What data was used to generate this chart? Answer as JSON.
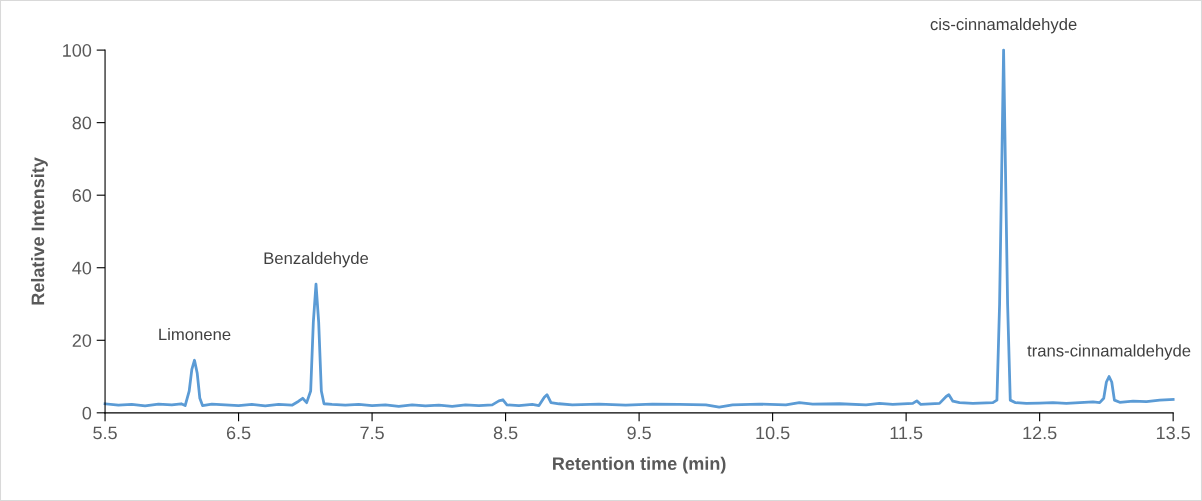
{
  "chart_data": {
    "type": "line",
    "xlabel": "Retention time (min)",
    "ylabel": "Relative Intensity",
    "xlim": [
      5.5,
      13.5
    ],
    "xticks": [
      5.5,
      6.5,
      7.5,
      8.5,
      9.5,
      10.5,
      11.5,
      12.5,
      13.5
    ],
    "ylim": [
      0,
      100
    ],
    "yticks": [
      0,
      20,
      40,
      60,
      80,
      100
    ],
    "grid": false,
    "legend": false,
    "marker": "none",
    "line_style": "solid",
    "annotations": [
      {
        "text": "Limonene",
        "x": 6.17,
        "y": 14.5
      },
      {
        "text": "Benzaldehyde",
        "x": 7.08,
        "y": 35.5
      },
      {
        "text": "cis-cinnamaldehyde",
        "x": 12.23,
        "y": 100
      },
      {
        "text": "trans-cinnamaldehyde",
        "x": 13.02,
        "y": 10
      }
    ],
    "series": [
      {
        "color": "#5b9bd5",
        "x": [
          5.5,
          5.6,
          5.7,
          5.8,
          5.9,
          6.0,
          6.07,
          6.1,
          6.13,
          6.15,
          6.17,
          6.19,
          6.21,
          6.23,
          6.3,
          6.4,
          6.5,
          6.6,
          6.7,
          6.8,
          6.9,
          6.95,
          6.98,
          7.01,
          7.04,
          7.06,
          7.08,
          7.1,
          7.12,
          7.14,
          7.2,
          7.3,
          7.4,
          7.5,
          7.6,
          7.7,
          7.8,
          7.9,
          8.0,
          8.1,
          8.2,
          8.3,
          8.4,
          8.45,
          8.48,
          8.51,
          8.6,
          8.7,
          8.75,
          8.79,
          8.81,
          8.84,
          8.9,
          9.0,
          9.2,
          9.4,
          9.6,
          9.8,
          10.0,
          10.1,
          10.2,
          10.4,
          10.6,
          10.7,
          10.8,
          11.0,
          11.2,
          11.3,
          11.4,
          11.55,
          11.58,
          11.61,
          11.75,
          11.8,
          11.82,
          11.85,
          11.9,
          12.0,
          12.15,
          12.18,
          12.2,
          12.23,
          12.26,
          12.28,
          12.32,
          12.4,
          12.5,
          12.6,
          12.7,
          12.8,
          12.9,
          12.95,
          12.98,
          13.0,
          13.02,
          13.04,
          13.06,
          13.1,
          13.2,
          13.3,
          13.4,
          13.5
        ],
        "values": [
          2.5,
          2.1,
          2.3,
          1.9,
          2.4,
          2.2,
          2.5,
          2.0,
          6,
          12,
          14.5,
          11,
          4,
          2.0,
          2.4,
          2.2,
          2.0,
          2.3,
          1.9,
          2.3,
          2.1,
          3.2,
          4.0,
          2.8,
          6,
          25,
          35.5,
          25,
          6,
          2.5,
          2.3,
          2.1,
          2.3,
          2.0,
          2.2,
          1.8,
          2.2,
          1.9,
          2.1,
          1.8,
          2.2,
          2.0,
          2.2,
          3.3,
          3.6,
          2.2,
          2.0,
          2.3,
          2.0,
          4.3,
          5.0,
          2.8,
          2.5,
          2.2,
          2.4,
          2.1,
          2.4,
          2.3,
          2.2,
          1.6,
          2.2,
          2.4,
          2.2,
          2.8,
          2.4,
          2.5,
          2.2,
          2.6,
          2.3,
          2.6,
          3.3,
          2.3,
          2.6,
          4.5,
          5.0,
          3.2,
          2.8,
          2.6,
          2.8,
          3.5,
          30,
          100,
          30,
          3.5,
          2.8,
          2.6,
          2.7,
          2.8,
          2.6,
          2.8,
          3.0,
          2.8,
          4,
          8.5,
          10,
          8.5,
          3.5,
          2.9,
          3.2,
          3.1,
          3.5,
          3.7
        ]
      }
    ]
  }
}
